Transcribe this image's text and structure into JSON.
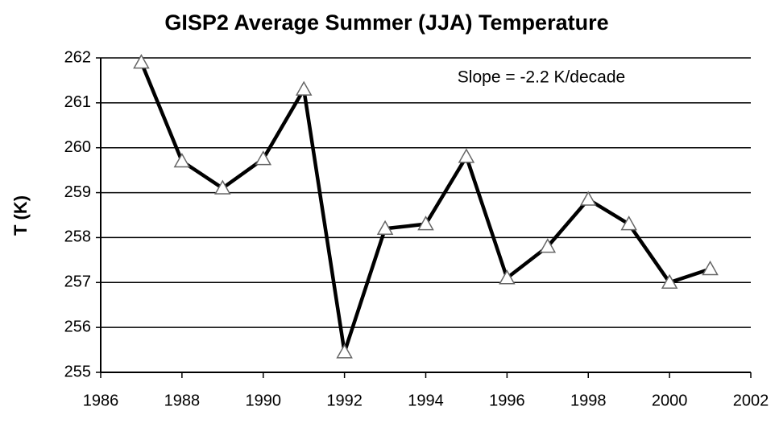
{
  "chart_data": {
    "type": "line",
    "title": "GISP2 Average Summer (JJA) Temperature",
    "ylabel": "T (K)",
    "annotation": "Slope = -2.2 K/decade",
    "x": [
      1987,
      1988,
      1989,
      1990,
      1991,
      1992,
      1993,
      1994,
      1995,
      1996,
      1997,
      1998,
      1999,
      2000,
      2001
    ],
    "series": [
      {
        "name": "GISP2",
        "color": "#000000",
        "values": [
          261.9,
          259.7,
          259.1,
          259.75,
          261.3,
          255.45,
          258.2,
          258.3,
          259.8,
          257.1,
          257.8,
          258.85,
          258.3,
          257.0,
          257.3
        ]
      }
    ],
    "xlim": [
      1986,
      2002
    ],
    "xticks": [
      1986,
      1988,
      1990,
      1992,
      1994,
      1996,
      1998,
      2000,
      2002
    ],
    "ylim": [
      255,
      262
    ],
    "yticks": [
      255,
      256,
      257,
      258,
      259,
      260,
      261,
      262
    ],
    "grid": true
  }
}
